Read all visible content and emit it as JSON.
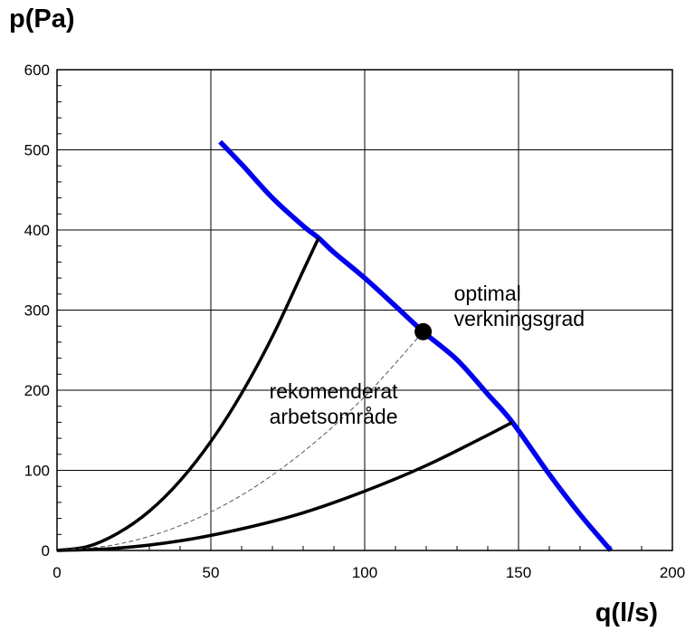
{
  "chart_data": {
    "type": "line",
    "title": "",
    "xlabel": "q(l/s)",
    "ylabel": "p(Pa)",
    "xlim": [
      0,
      200
    ],
    "ylim": [
      0,
      600
    ],
    "xticks": [
      0,
      50,
      100,
      150,
      200
    ],
    "yticks": [
      0,
      100,
      200,
      300,
      400,
      500,
      600
    ],
    "grid": true,
    "series": [
      {
        "color": "#0000ee",
        "x": [
          53,
          60,
          70,
          80,
          85,
          90,
          100,
          110,
          119,
          130,
          140,
          148,
          160,
          170,
          180
        ],
        "y": [
          510,
          482,
          440,
          405,
          390,
          372,
          340,
          305,
          273,
          238,
          195,
          160,
          95,
          45,
          0
        ]
      },
      {
        "color": "#000000",
        "x": [
          0,
          10,
          20,
          30,
          40,
          50,
          60,
          70,
          80,
          85
        ],
        "y": [
          0,
          5,
          22,
          49,
          87,
          136,
          196,
          267,
          349,
          390
        ]
      },
      {
        "color": "#000000",
        "x": [
          0,
          20,
          40,
          60,
          80,
          100,
          120,
          140,
          148
        ],
        "y": [
          0,
          3,
          12,
          27,
          47,
          74,
          106,
          144,
          160
        ]
      },
      {
        "color": "#555555",
        "x": [
          0,
          20,
          40,
          60,
          80,
          100,
          119
        ],
        "y": [
          0,
          8,
          31,
          69,
          123,
          192,
          273
        ]
      }
    ],
    "points": [
      {
        "x": 119,
        "y": 273,
        "color": "#000000"
      }
    ],
    "annotations": [
      {
        "lines": [
          "optimal",
          "verkningsgrad"
        ],
        "x": 129,
        "y": 312
      },
      {
        "lines": [
          "rekomenderat",
          "arbetsområde"
        ],
        "x": 69,
        "y": 190
      }
    ]
  }
}
